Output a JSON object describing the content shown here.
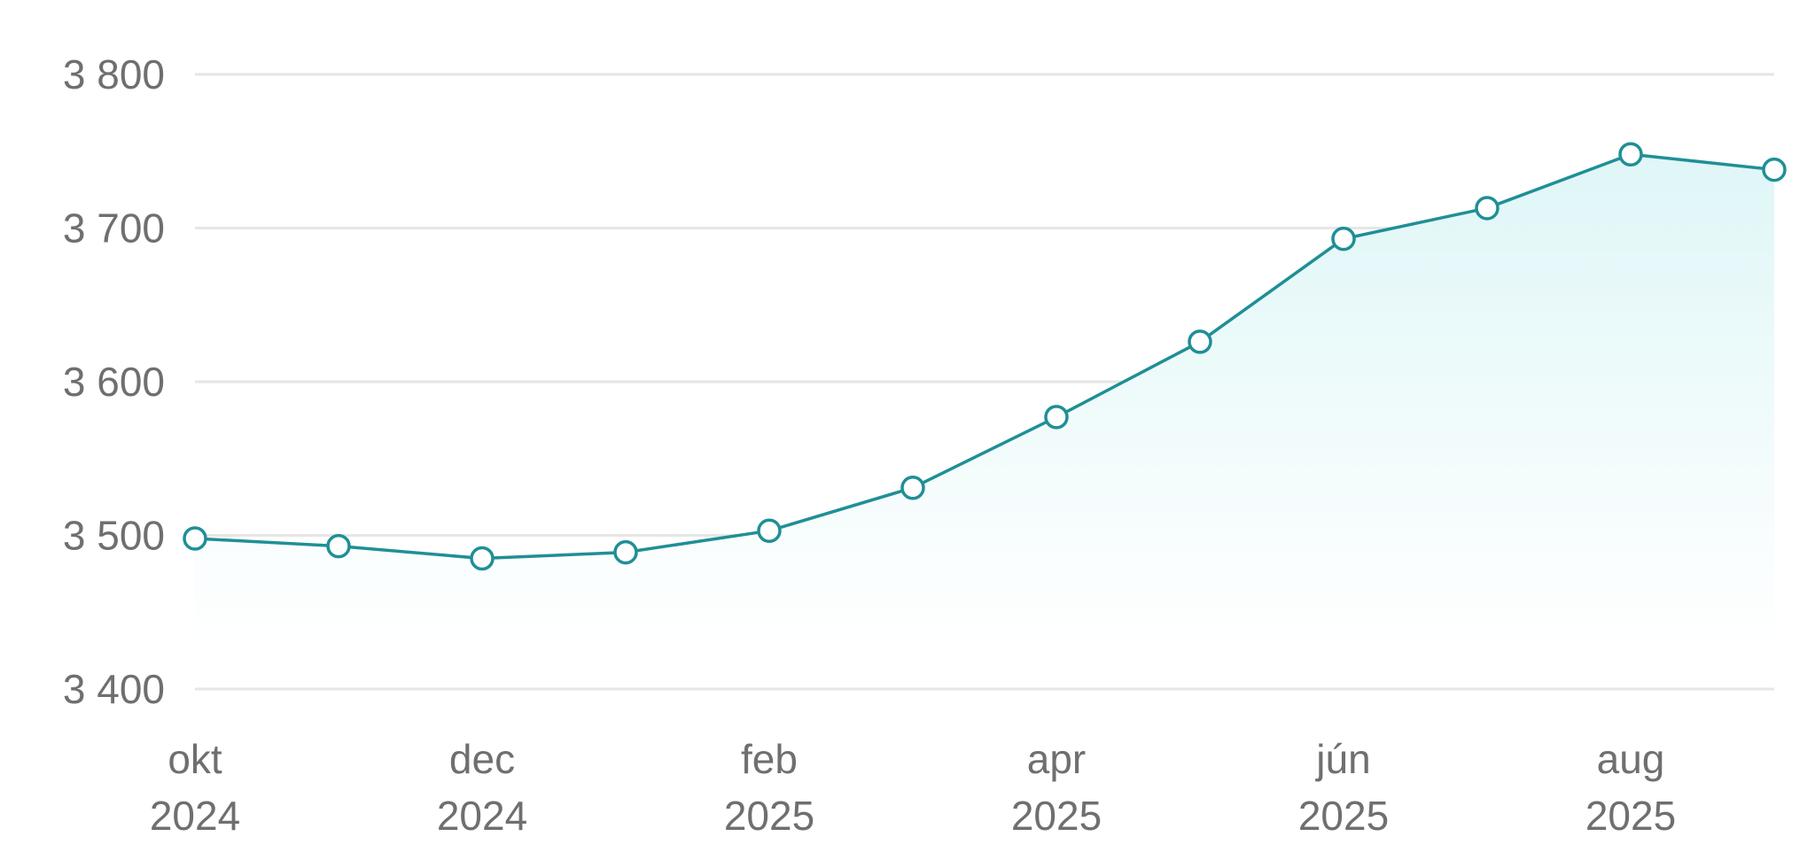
{
  "chart_data": {
    "type": "area",
    "title": "",
    "xlabel": "",
    "ylabel": "",
    "y_ticks": [
      3400,
      3500,
      3600,
      3700,
      3800
    ],
    "y_tick_labels": [
      "3 400",
      "3 500",
      "3 600",
      "3 700",
      "3 800"
    ],
    "ylim": [
      3400,
      3800
    ],
    "x": [
      "2024-10",
      "2024-11",
      "2024-12",
      "2025-01",
      "2025-02",
      "2025-03",
      "2025-04",
      "2025-05",
      "2025-06",
      "2025-07",
      "2025-08",
      "2025-09"
    ],
    "values": [
      3498,
      3493,
      3485,
      3489,
      3503,
      3531,
      3577,
      3626,
      3693,
      3713,
      3748,
      3738
    ],
    "x_tick_labels": [
      {
        "index": 0,
        "month": "okt",
        "year": "2024"
      },
      {
        "index": 2,
        "month": "dec",
        "year": "2024"
      },
      {
        "index": 4,
        "month": "feb",
        "year": "2025"
      },
      {
        "index": 6,
        "month": "apr",
        "year": "2025"
      },
      {
        "index": 8,
        "month": "jún",
        "year": "2025"
      },
      {
        "index": 10,
        "month": "aug",
        "year": "2025"
      }
    ],
    "grid": true,
    "legend": "none",
    "colors": {
      "line": "#1f8f96",
      "fill_top": "#dff6f7",
      "grid": "#e6e6e6",
      "text": "#6f6f6f"
    }
  }
}
